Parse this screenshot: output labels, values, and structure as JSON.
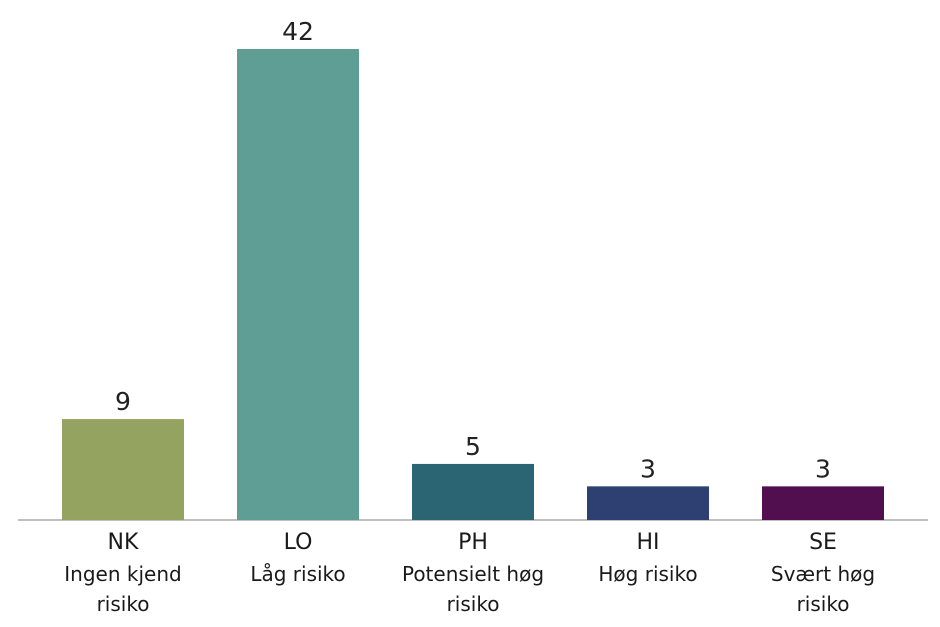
{
  "chart_data": {
    "type": "bar",
    "categories": [
      "NK",
      "LO",
      "PH",
      "HI",
      "SE"
    ],
    "descriptions": [
      "Ingen kjend risiko",
      "Låg risiko",
      "Potensielt høg risiko",
      "Høg risiko",
      "Svært høg risiko"
    ],
    "values": [
      9,
      42,
      5,
      3,
      3
    ],
    "colors": [
      "#94a460",
      "#5e9e94",
      "#2b6472",
      "#2e3f72",
      "#520f4f"
    ]
  }
}
